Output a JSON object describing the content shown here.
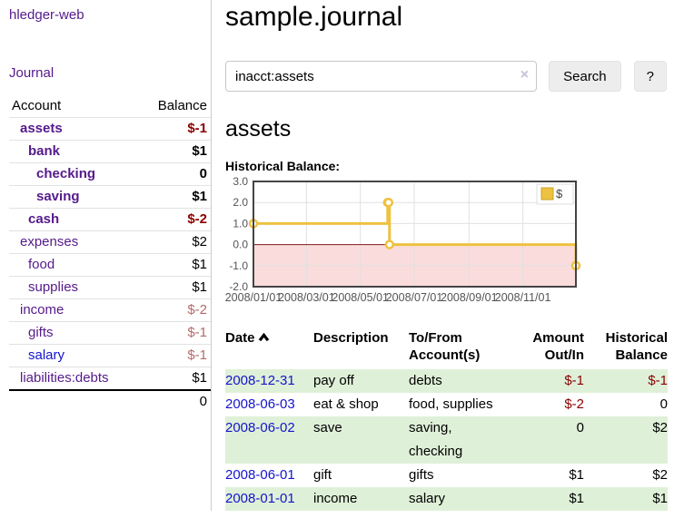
{
  "app": {
    "title": "hledger-web"
  },
  "colors": {
    "link_purple": "#551a8b",
    "link_blue": "#1414cc",
    "negative_strong": "#8b0000",
    "negative_muted": "#b36b6b",
    "row_highlight_green": "#dff0d8",
    "series_yellow": "#edc240",
    "negative_region_pink": "#fbdcdc",
    "zero_line_red": "#8b1a1a",
    "button_gray": "#ededed"
  },
  "sidebar": {
    "nav": {
      "journal_label": "Journal"
    },
    "accounts_table": {
      "account_header": "Account",
      "balance_header": "Balance",
      "rows": [
        {
          "name": "assets",
          "balance": "$-1"
        },
        {
          "name": "bank",
          "balance": "$1"
        },
        {
          "name": "checking",
          "balance": "0"
        },
        {
          "name": "saving",
          "balance": "$1"
        },
        {
          "name": "cash",
          "balance": "$-2"
        },
        {
          "name": "expenses",
          "balance": "$2"
        },
        {
          "name": "food",
          "balance": "$1"
        },
        {
          "name": "supplies",
          "balance": "$1"
        },
        {
          "name": "income",
          "balance": "$-2"
        },
        {
          "name": "gifts",
          "balance": "$-1"
        },
        {
          "name": "salary",
          "balance": "$-1"
        },
        {
          "name": "liabilities:debts",
          "balance": "$1"
        }
      ],
      "total": "0"
    }
  },
  "main": {
    "title": "sample.journal",
    "search": {
      "value": "inacct:assets",
      "clear_icon": "×",
      "button_label": "Search",
      "help_label": "?"
    },
    "account_heading": "assets",
    "chart_label": "Historical Balance:",
    "register": {
      "headers": {
        "date": "Date",
        "description": "Description",
        "tofrom_line1": "To/From",
        "tofrom_line2": "Account(s)",
        "amount_line1": "Amount",
        "amount_line2": "Out/In",
        "balance_line1": "Historical",
        "balance_line2": "Balance"
      },
      "rows": [
        {
          "date": "2008-12-31",
          "description": "pay off",
          "accounts": "debts",
          "amount": "$-1",
          "balance": "$-1"
        },
        {
          "date": "2008-06-03",
          "description": "eat & shop",
          "accounts": "food, supplies",
          "amount": "$-2",
          "balance": "0"
        },
        {
          "date": "2008-06-02",
          "description": "save",
          "accounts": "saving, checking",
          "amount": "0",
          "balance": "$2"
        },
        {
          "date": "2008-06-01",
          "description": "gift",
          "accounts": "gifts",
          "amount": "$1",
          "balance": "$2"
        },
        {
          "date": "2008-01-01",
          "description": "income",
          "accounts": "salary",
          "amount": "$1",
          "balance": "$1"
        }
      ]
    }
  },
  "chart_data": {
    "type": "line",
    "title": "Historical Balance:",
    "step": true,
    "series": [
      {
        "name": "$",
        "color": "#edc240",
        "points": [
          [
            "2008-01-01",
            1.0
          ],
          [
            "2008-06-01",
            2.0
          ],
          [
            "2008-06-02",
            2.0
          ],
          [
            "2008-06-03",
            0.0
          ],
          [
            "2008-12-31",
            -1.0
          ]
        ]
      }
    ],
    "xlim": [
      "2008-01-01",
      "2008-12-31"
    ],
    "ylim": [
      -2.0,
      3.0
    ],
    "y_ticks": [
      3.0,
      2.0,
      1.0,
      0.0,
      -1.0,
      -2.0
    ],
    "x_ticks": [
      "2008-01-01",
      "2008-03-01",
      "2008-05-01",
      "2008-07-01",
      "2008-09-01",
      "2008-11-01"
    ],
    "x_tick_labels": [
      "2008/01/01",
      "2008/03/01",
      "2008/05/01",
      "2008/07/01",
      "2008/09/01",
      "2008/11/01"
    ],
    "grid": true,
    "legend_position": "top-right",
    "negative_region_color": "#fbdcdc",
    "zero_line_color": "#8b1a1a"
  }
}
